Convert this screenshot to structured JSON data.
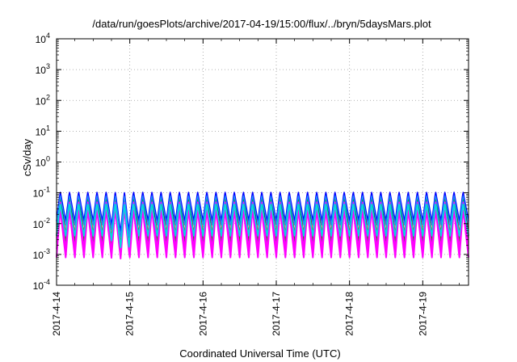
{
  "chart_data": {
    "type": "line",
    "title": "/data/run/goesPlots/archive/2017-04-19/15:00/flux/../bryn/5daysMars.plot",
    "xlabel": "Coordinated Universal Time (UTC)",
    "ylabel": "cSv/day",
    "y_scale": "log",
    "ylim": [
      0.0001,
      10000
    ],
    "y_ticks": [
      {
        "base": "10",
        "exp": "-4",
        "value": 0.0001
      },
      {
        "base": "10",
        "exp": "-3",
        "value": 0.001
      },
      {
        "base": "10",
        "exp": "-2",
        "value": 0.01
      },
      {
        "base": "10",
        "exp": "-1",
        "value": 0.1
      },
      {
        "base": "10",
        "exp": "0",
        "value": 1
      },
      {
        "base": "10",
        "exp": "1",
        "value": 10
      },
      {
        "base": "10",
        "exp": "2",
        "value": 100
      },
      {
        "base": "10",
        "exp": "3",
        "value": 1000
      },
      {
        "base": "10",
        "exp": "4",
        "value": 10000
      }
    ],
    "x_domain": [
      "2017-04-14T00:00",
      "2017-04-19T15:00"
    ],
    "x_ticks": [
      "2017-4-14",
      "2017-4-15",
      "2017-4-16",
      "2017-4-17",
      "2017-4-18",
      "2017-4-19"
    ],
    "grid": true,
    "pattern": {
      "description": "sawtooth, 8 periods per day",
      "period_hours": 3,
      "peak_fraction_of_period": 0.4,
      "anomaly": {
        "start": "2017-04-14T16:00",
        "end": "2017-04-15T00:00",
        "min_floor": 0.0007
      }
    },
    "series": [
      {
        "color": "#ff0000",
        "peak": 0.105,
        "trough": 0.004,
        "width": 1.8
      },
      {
        "color": "#000000",
        "peak": 0.095,
        "trough": 0.0035,
        "width": 1.2
      },
      {
        "color": "#00aa00",
        "peak": 0.075,
        "trough": 0.0025,
        "width": 1.3
      },
      {
        "color": "#ff00ff",
        "peak": 0.03,
        "trough": 0.0008,
        "width": 2.0
      },
      {
        "color": "#ff00ff",
        "peak": 0.055,
        "trough": 0.0015,
        "width": 1.6
      },
      {
        "color": "#00dddd",
        "peak": 0.045,
        "trough": 0.004,
        "width": 1.8
      },
      {
        "color": "#0000ff",
        "peak": 0.11,
        "trough": 0.012,
        "width": 1.6
      },
      {
        "color": "#1e90ff",
        "peak": 0.085,
        "trough": 0.009,
        "width": 1.2
      }
    ]
  }
}
